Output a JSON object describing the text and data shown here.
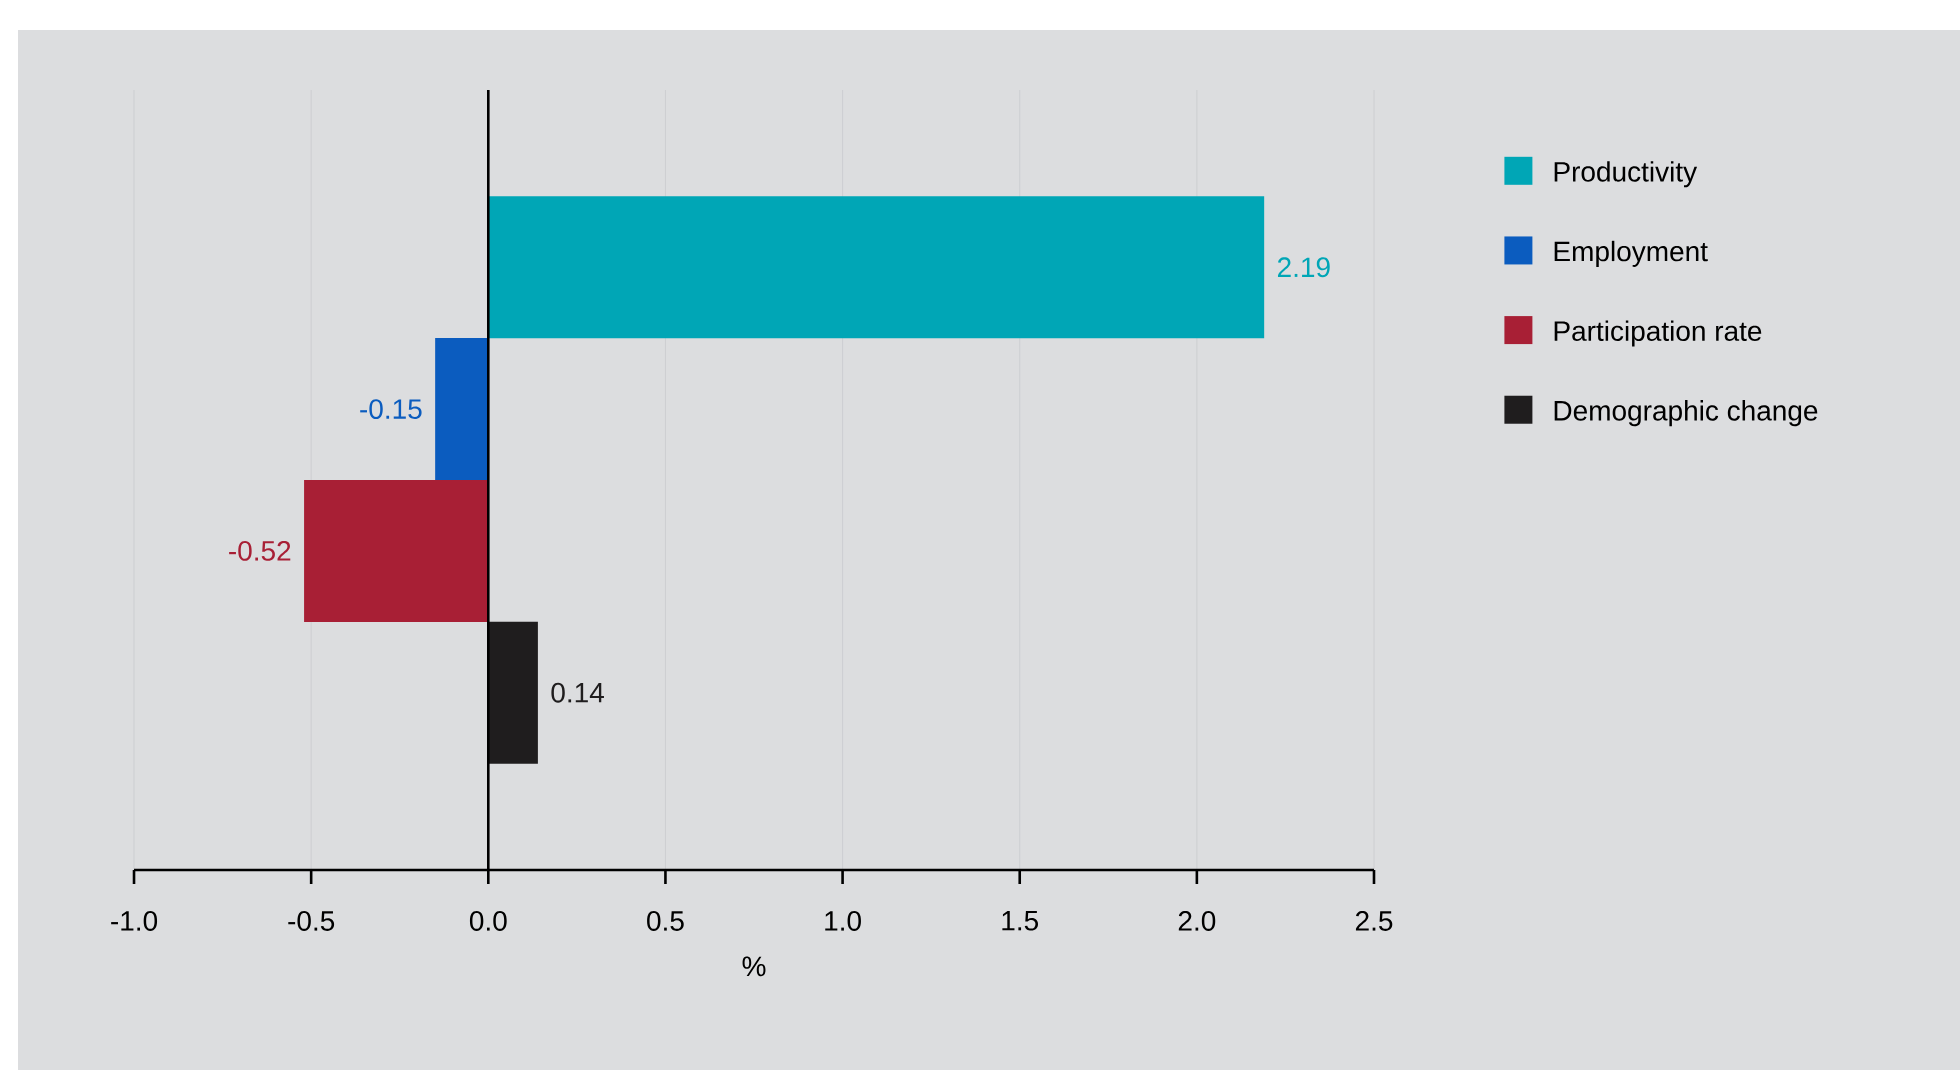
{
  "chart_data": {
    "type": "bar",
    "orientation": "horizontal",
    "xlabel": "%",
    "categories": [
      null,
      null,
      null,
      null
    ],
    "series": [
      {
        "name": "Productivity",
        "color": "#00a6b6",
        "values": [
          2.19,
          null,
          null,
          null
        ]
      },
      {
        "name": "Employment",
        "color": "#0b5cbf",
        "values": [
          null,
          -0.15,
          null,
          null
        ]
      },
      {
        "name": "Participation rate",
        "color": "#a81f35",
        "values": [
          null,
          null,
          -0.52,
          null
        ]
      },
      {
        "name": "Demographic change",
        "color": "#1f1d1e",
        "values": [
          null,
          null,
          null,
          0.14
        ]
      }
    ],
    "xlim": [
      -1,
      2.5
    ],
    "xticks": [
      {
        "value": -1,
        "label": "-1.0"
      },
      -0.5,
      {
        "value": 0,
        "label": "0.0"
      },
      0.5,
      {
        "value": 1,
        "label": "1.0"
      },
      1.5,
      {
        "value": 2,
        "label": "2.0"
      },
      2.5
    ],
    "grid": "x",
    "legend": "right",
    "data_labels": true
  }
}
